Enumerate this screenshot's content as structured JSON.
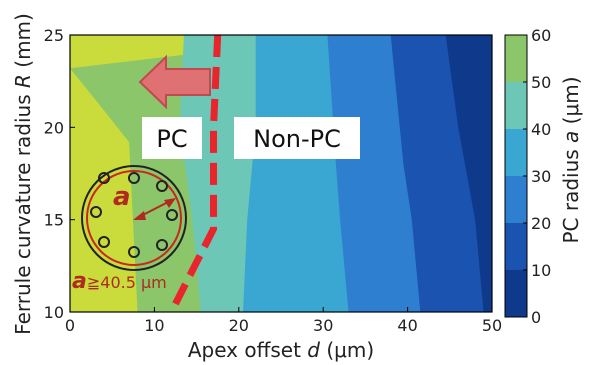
{
  "chart_data": {
    "type": "contour",
    "xlabel": "Apex offset d (μm)",
    "xlabel_parts": {
      "text": "Apex offset ",
      "var": "d",
      "unit": " (μm)"
    },
    "ylabel": "Ferrule curvature radius R (mm)",
    "ylabel_parts": {
      "text": "Ferrule curvature radius ",
      "var": "R",
      "unit": " (mm)"
    },
    "colorbar_label": "PC radius a (μm)",
    "colorbar_label_parts": {
      "text": "PC radius ",
      "var": "a",
      "unit": " (μm)"
    },
    "xlim": [
      0,
      50
    ],
    "ylim": [
      10,
      25
    ],
    "x_ticks": [
      "0",
      "10",
      "20",
      "30",
      "40",
      "50"
    ],
    "y_ticks": [
      "10",
      "15",
      "20",
      "25"
    ],
    "colorbar_ticks": [
      "0",
      "10",
      "20",
      "30",
      "40",
      "50",
      "60"
    ],
    "levels": [
      0,
      10,
      20,
      30,
      40,
      50,
      60
    ],
    "level_colors": [
      "#0f3a8c",
      "#1a53b0",
      "#2f7fd0",
      "#3aa7d2",
      "#6cc7b6",
      "#8cc66a",
      "#c9dc3c"
    ],
    "boundaries": [
      {
        "level": 50,
        "points": [
          [
            0,
            23.2
          ],
          [
            3,
            21.5
          ],
          [
            7,
            19.2
          ],
          [
            8,
            10
          ]
        ]
      },
      {
        "level": 40,
        "points": [
          [
            13.5,
            25
          ],
          [
            13,
            20
          ],
          [
            14.5,
            15
          ],
          [
            15.5,
            10
          ]
        ]
      },
      {
        "level": 30,
        "points": [
          [
            22,
            25
          ],
          [
            22,
            20
          ],
          [
            21,
            15
          ],
          [
            20.5,
            10
          ]
        ]
      },
      {
        "level": 20,
        "points": [
          [
            30.5,
            25
          ],
          [
            31.5,
            18
          ],
          [
            32,
            15
          ],
          [
            33,
            10
          ]
        ]
      },
      {
        "level": 10,
        "points": [
          [
            38,
            25
          ],
          [
            39.5,
            18
          ],
          [
            40.5,
            15
          ],
          [
            41.5,
            10
          ]
        ]
      },
      {
        "level": 0,
        "points": [
          [
            44.5,
            25
          ],
          [
            46,
            20
          ],
          [
            48,
            15
          ],
          [
            49,
            10
          ]
        ]
      }
    ],
    "pc_boundary": [
      [
        17.5,
        25
      ],
      [
        17,
        20
      ],
      [
        17,
        14.5
      ],
      [
        12,
        10
      ]
    ],
    "annotations": {
      "pc_label": "PC",
      "nonpc_label": "Non-PC",
      "radius_symbol": "a",
      "threshold_text": "≧40.5 μm",
      "threshold_value": 40.5
    },
    "colors": {
      "pc_line": "#e8242c",
      "arrow_fill": "#e07173",
      "arrow_stroke": "#c04a4f",
      "annotation_text": "#b02a20"
    }
  }
}
